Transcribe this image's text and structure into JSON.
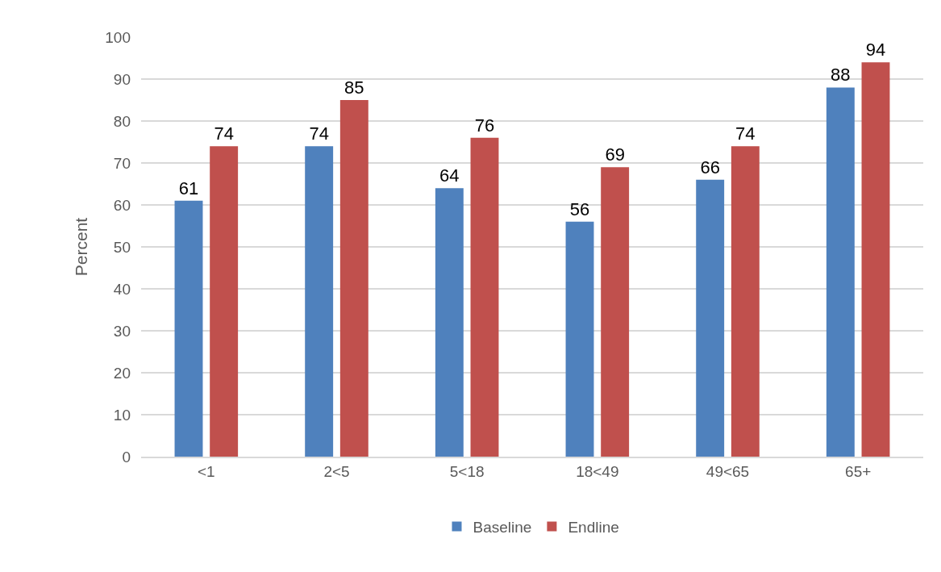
{
  "chart_data": {
    "type": "bar",
    "ylabel": "Percent",
    "categories": [
      "<1",
      "2<5",
      "5<18",
      "18<49",
      "49<65",
      "65+"
    ],
    "series": [
      {
        "name": "Baseline",
        "color": "#4f81bd",
        "values": [
          61,
          74,
          64,
          56,
          66,
          88
        ]
      },
      {
        "name": "Endline",
        "color": "#c0504d",
        "values": [
          74,
          85,
          76,
          69,
          74,
          94
        ]
      }
    ],
    "ylim": [
      0,
      100
    ],
    "yticks": [
      0,
      10,
      20,
      30,
      40,
      50,
      60,
      70,
      80,
      90,
      100
    ],
    "grid": "y",
    "legend": "bottom",
    "data_labels": true
  }
}
